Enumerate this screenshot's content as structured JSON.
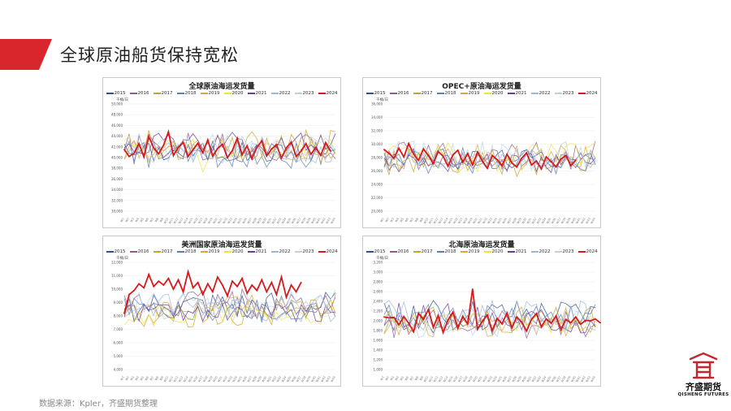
{
  "page": {
    "title": "全球原油船货保持宽松",
    "source": "数据来源：Kpler，齐盛期货整理",
    "accent": "#d9262c"
  },
  "logo": {
    "name_cn": "齐盛期货",
    "name_en": "QISHENG FUTURES",
    "color": "#c1272d"
  },
  "legend_years": [
    "2015",
    "2016",
    "2017",
    "2018",
    "2019",
    "2020",
    "2021",
    "2022",
    "2023",
    "2024"
  ],
  "legend_colors": [
    "#2f4f8f",
    "#8e5c8e",
    "#c9a227",
    "#5a7fb0",
    "#d9a441",
    "#f0e040",
    "#6a3d9a",
    "#9db6d9",
    "#b7d3ea",
    "#d7191c"
  ],
  "chart_data": [
    {
      "type": "line",
      "title": "全球原油海运发货量",
      "unit": "千桶/日",
      "ylim": [
        30000,
        50000
      ],
      "yticks": [
        "30,000",
        "32,000",
        "34,000",
        "36,000",
        "38,000",
        "40,000",
        "42,000",
        "44,000",
        "46,000",
        "48,000",
        "50,000"
      ],
      "highlight_series": {
        "name": "2024",
        "values": [
          41500,
          40200,
          40800,
          42600,
          40100,
          43900,
          41800,
          40700,
          42300,
          44800,
          40400,
          41900,
          42800,
          40200,
          41500,
          42700,
          40900,
          43300,
          40300,
          41700,
          42500,
          40000,
          41300,
          43600,
          40500,
          42200,
          39800,
          41900,
          43100,
          40300,
          41600,
          42400,
          39900,
          41800,
          42900,
          40200,
          41200,
          42600,
          40600,
          41900,
          40400,
          42800,
          41200
        ]
      }
    },
    {
      "type": "line",
      "title": "OPEC+原油海运发货量",
      "unit": "千桶/日",
      "ylim": [
        20000,
        36000
      ],
      "yticks": [
        "20,000",
        "22,000",
        "24,000",
        "26,000",
        "28,000",
        "30,000",
        "32,000",
        "34,000",
        "36,000"
      ],
      "highlight_series": {
        "name": "2024",
        "values": [
          29200,
          28600,
          27900,
          29400,
          28100,
          30100,
          28500,
          27600,
          29300,
          28300,
          27100,
          28900,
          28200,
          26700,
          28400,
          29100,
          27300,
          28600,
          26900,
          28800,
          27500,
          26400,
          28300,
          27700,
          26800,
          28500,
          27200,
          26600,
          27900,
          28700,
          26900,
          27500,
          26300,
          28100,
          27400,
          26600,
          27800,
          28300,
          26800,
          27600
        ]
      }
    },
    {
      "type": "line",
      "title": "美洲国家原油海运发货量",
      "unit": "千桶/日",
      "ylim": [
        4000,
        12000
      ],
      "yticks": [
        "4,000",
        "5,000",
        "6,000",
        "7,000",
        "8,000",
        "9,000",
        "10,000",
        "11,000",
        "12,000"
      ],
      "highlight_series": {
        "name": "2024",
        "values": [
          8200,
          9600,
          9900,
          10400,
          10100,
          11100,
          10200,
          10600,
          10300,
          10800,
          10000,
          10700,
          9800,
          11300,
          10100,
          10500,
          9600,
          10400,
          9800,
          10900,
          10300,
          9500,
          10600,
          10200,
          10800,
          9700,
          10300,
          9900,
          10700,
          9800,
          10500,
          9600,
          10900,
          9400,
          10300,
          9800,
          10500
        ]
      }
    },
    {
      "type": "line",
      "title": "北海原油海运发货量",
      "unit": "千桶/日",
      "ylim": [
        1000,
        3200
      ],
      "yticks": [
        "1,000",
        "1,200",
        "1,400",
        "1,600",
        "1,800",
        "2,000",
        "2,200",
        "2,400",
        "2,600",
        "2,800",
        "3,000",
        "3,200"
      ],
      "highlight_series": {
        "name": "2024",
        "values": [
          2080,
          2060,
          2070,
          1920,
          2090,
          1950,
          1780,
          2150,
          2030,
          2230,
          1870,
          2110,
          1760,
          2020,
          2180,
          1850,
          2090,
          1940,
          2650,
          1830,
          1990,
          2120,
          1800,
          2050,
          1940,
          2160,
          1860,
          2080,
          1970,
          1790,
          2030,
          2150,
          1880,
          2040,
          1950,
          2100,
          1820,
          2030,
          1960,
          2080,
          1930,
          2010,
          2000,
          2040,
          1960
        ]
      }
    }
  ]
}
